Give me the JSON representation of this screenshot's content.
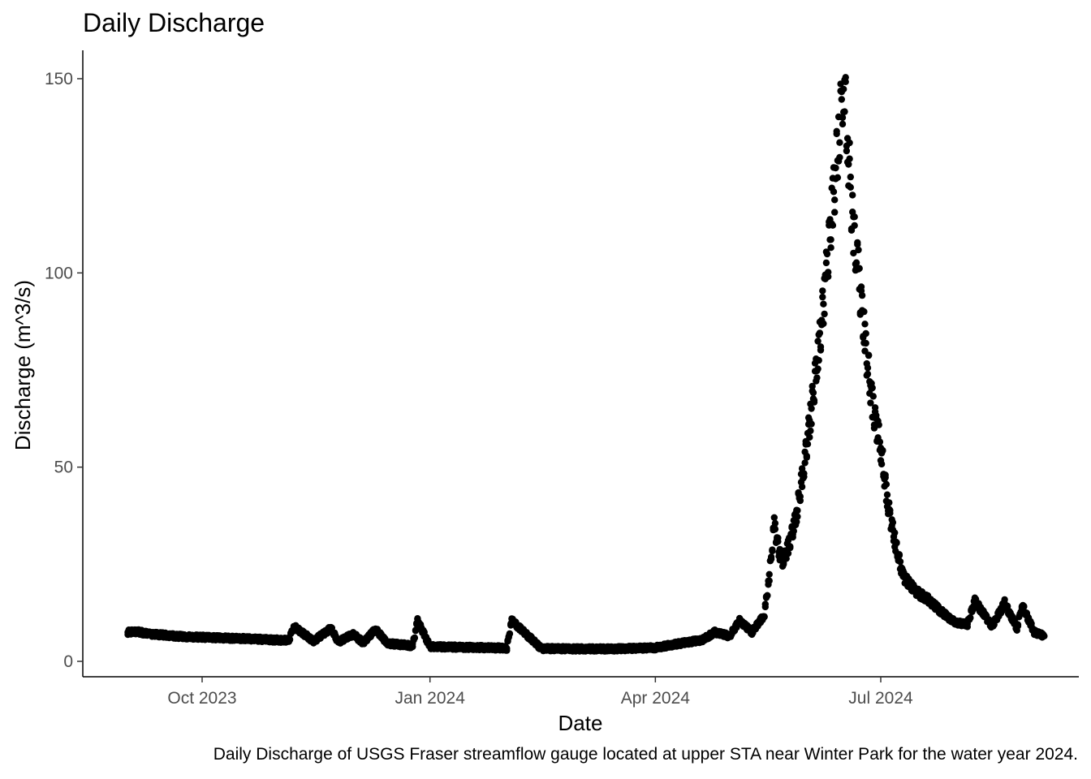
{
  "chart_data": {
    "type": "scatter",
    "title": "Daily Discharge",
    "xlabel": "Date",
    "ylabel": "Discharge (m^3/s)",
    "caption": "Daily Discharge of USGS Fraser streamflow gauge located at upper STA near Winter Park for the water year 2024.",
    "x_ticks": [
      "Oct 2023",
      "Jan 2024",
      "Apr 2024",
      "Jul 2024"
    ],
    "x_tick_dates": [
      "2023-10-01",
      "2024-01-01",
      "2024-04-01",
      "2024-07-01"
    ],
    "x_range": [
      "2023-09-01",
      "2024-09-05"
    ],
    "y_ticks": [
      0,
      50,
      100,
      150
    ],
    "ylim": [
      0,
      150
    ],
    "grid": false,
    "marker_color": "#000000",
    "series": [
      {
        "points": [
          [
            "2023-09-01",
            7.5
          ],
          [
            "2023-09-05",
            7.6
          ],
          [
            "2023-09-10",
            7.0
          ],
          [
            "2023-09-15",
            6.8
          ],
          [
            "2023-09-20",
            6.5
          ],
          [
            "2023-09-25",
            6.3
          ],
          [
            "2023-10-01",
            6.2
          ],
          [
            "2023-10-10",
            6.0
          ],
          [
            "2023-10-20",
            5.8
          ],
          [
            "2023-10-30",
            5.5
          ],
          [
            "2023-11-05",
            5.4
          ],
          [
            "2023-11-07",
            9.0
          ],
          [
            "2023-11-15",
            5.2
          ],
          [
            "2023-11-22",
            8.5
          ],
          [
            "2023-11-25",
            5.0
          ],
          [
            "2023-12-01",
            7.0
          ],
          [
            "2023-12-05",
            4.8
          ],
          [
            "2023-12-10",
            8.2
          ],
          [
            "2023-12-15",
            4.6
          ],
          [
            "2023-12-20",
            4.3
          ],
          [
            "2023-12-25",
            4.0
          ],
          [
            "2023-12-27",
            10.5
          ],
          [
            "2024-01-01",
            3.8
          ],
          [
            "2024-01-15",
            3.6
          ],
          [
            "2024-01-25",
            3.5
          ],
          [
            "2024-02-01",
            3.4
          ],
          [
            "2024-02-03",
            10.5
          ],
          [
            "2024-02-15",
            3.3
          ],
          [
            "2024-03-01",
            3.2
          ],
          [
            "2024-03-15",
            3.2
          ],
          [
            "2024-04-01",
            3.5
          ],
          [
            "2024-04-10",
            4.5
          ],
          [
            "2024-04-20",
            5.5
          ],
          [
            "2024-04-25",
            7.5
          ],
          [
            "2024-05-01",
            6.5
          ],
          [
            "2024-05-05",
            10.5
          ],
          [
            "2024-05-10",
            7.5
          ],
          [
            "2024-05-15",
            12.0
          ],
          [
            "2024-05-17",
            22.0
          ],
          [
            "2024-05-19",
            35.0
          ],
          [
            "2024-05-22",
            25.0
          ],
          [
            "2024-05-25",
            30.0
          ],
          [
            "2024-05-28",
            38.0
          ],
          [
            "2024-05-31",
            50.0
          ],
          [
            "2024-06-03",
            65.0
          ],
          [
            "2024-06-06",
            80.0
          ],
          [
            "2024-06-09",
            100.0
          ],
          [
            "2024-06-12",
            120.0
          ],
          [
            "2024-06-14",
            135.0
          ],
          [
            "2024-06-16",
            150.0
          ],
          [
            "2024-06-18",
            130.0
          ],
          [
            "2024-06-20",
            110.0
          ],
          [
            "2024-06-22",
            100.0
          ],
          [
            "2024-06-25",
            80.0
          ],
          [
            "2024-06-28",
            65.0
          ],
          [
            "2024-07-01",
            55.0
          ],
          [
            "2024-07-04",
            40.0
          ],
          [
            "2024-07-07",
            30.0
          ],
          [
            "2024-07-10",
            22.0
          ],
          [
            "2024-07-15",
            18.0
          ],
          [
            "2024-07-20",
            16.0
          ],
          [
            "2024-07-25",
            13.0
          ],
          [
            "2024-07-31",
            10.0
          ],
          [
            "2024-08-05",
            9.5
          ],
          [
            "2024-08-08",
            15.5
          ],
          [
            "2024-08-15",
            9.0
          ],
          [
            "2024-08-20",
            15.0
          ],
          [
            "2024-08-25",
            8.5
          ],
          [
            "2024-08-27",
            14.5
          ],
          [
            "2024-09-01",
            7.5
          ],
          [
            "2024-09-05",
            6.5
          ]
        ]
      }
    ]
  }
}
